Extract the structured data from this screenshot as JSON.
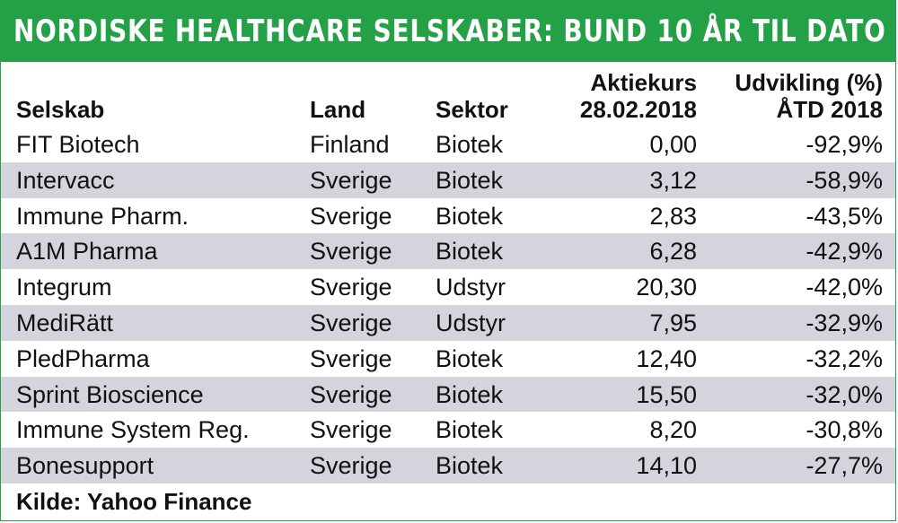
{
  "banner": {
    "title": "NORDISKE HEALTHCARE SELSKABER: BUND 10",
    "period": "ÅR TIL DATO"
  },
  "headers": {
    "company": "Selskab",
    "country": "Land",
    "sector": "Sektor",
    "price_line1": "Aktiekurs",
    "price_line2": "28.02.2018",
    "change_line1": "Udvikling (%)",
    "change_line2": "ÅTD 2018"
  },
  "rows": [
    {
      "company": "FIT Biotech",
      "country": "Finland",
      "sector": "Biotek",
      "price": "0,00",
      "change": "-92,9%"
    },
    {
      "company": "Intervacc",
      "country": "Sverige",
      "sector": "Biotek",
      "price": "3,12",
      "change": "-58,9%"
    },
    {
      "company": "Immune Pharm.",
      "country": "Sverige",
      "sector": "Biotek",
      "price": "2,83",
      "change": "-43,5%"
    },
    {
      "company": "A1M Pharma",
      "country": "Sverige",
      "sector": "Biotek",
      "price": "6,28",
      "change": "-42,9%"
    },
    {
      "company": "Integrum",
      "country": "Sverige",
      "sector": "Udstyr",
      "price": "20,30",
      "change": "-42,0%"
    },
    {
      "company": "MediRätt",
      "country": "Sverige",
      "sector": "Udstyr",
      "price": "7,95",
      "change": "-32,9%"
    },
    {
      "company": "PledPharma",
      "country": "Sverige",
      "sector": "Biotek",
      "price": "12,40",
      "change": "-32,2%"
    },
    {
      "company": "Sprint Bioscience",
      "country": "Sverige",
      "sector": "Biotek",
      "price": "15,50",
      "change": "-32,0%"
    },
    {
      "company": "Immune System Reg.",
      "country": "Sverige",
      "sector": "Biotek",
      "price": "8,20",
      "change": "-30,8%"
    },
    {
      "company": "Bonesupport",
      "country": "Sverige",
      "sector": "Biotek",
      "price": "14,10",
      "change": "-27,7%"
    }
  ],
  "source": "Kilde: Yahoo Finance",
  "colors": {
    "accent": "#24a047",
    "row_shade": "#d3d4dc"
  },
  "chart_data": {
    "type": "table",
    "title": "NORDISKE HEALTHCARE SELSKABER: BUND 10",
    "subtitle": "ÅR TIL DATO",
    "columns": [
      "Selskab",
      "Land",
      "Sektor",
      "Aktiekurs 28.02.2018",
      "Udvikling (%) ÅTD 2018"
    ],
    "rows": [
      [
        "FIT Biotech",
        "Finland",
        "Biotek",
        0.0,
        -92.9
      ],
      [
        "Intervacc",
        "Sverige",
        "Biotek",
        3.12,
        -58.9
      ],
      [
        "Immune Pharm.",
        "Sverige",
        "Biotek",
        2.83,
        -43.5
      ],
      [
        "A1M Pharma",
        "Sverige",
        "Biotek",
        6.28,
        -42.9
      ],
      [
        "Integrum",
        "Sverige",
        "Udstyr",
        20.3,
        -42.0
      ],
      [
        "MediRätt",
        "Sverige",
        "Udstyr",
        7.95,
        -32.9
      ],
      [
        "PledPharma",
        "Sverige",
        "Biotek",
        12.4,
        -32.2
      ],
      [
        "Sprint Bioscience",
        "Sverige",
        "Biotek",
        15.5,
        -32.0
      ],
      [
        "Immune System Reg.",
        "Sverige",
        "Biotek",
        8.2,
        -30.8
      ],
      [
        "Bonesupport",
        "Sverige",
        "Biotek",
        14.1,
        -27.7
      ]
    ]
  }
}
